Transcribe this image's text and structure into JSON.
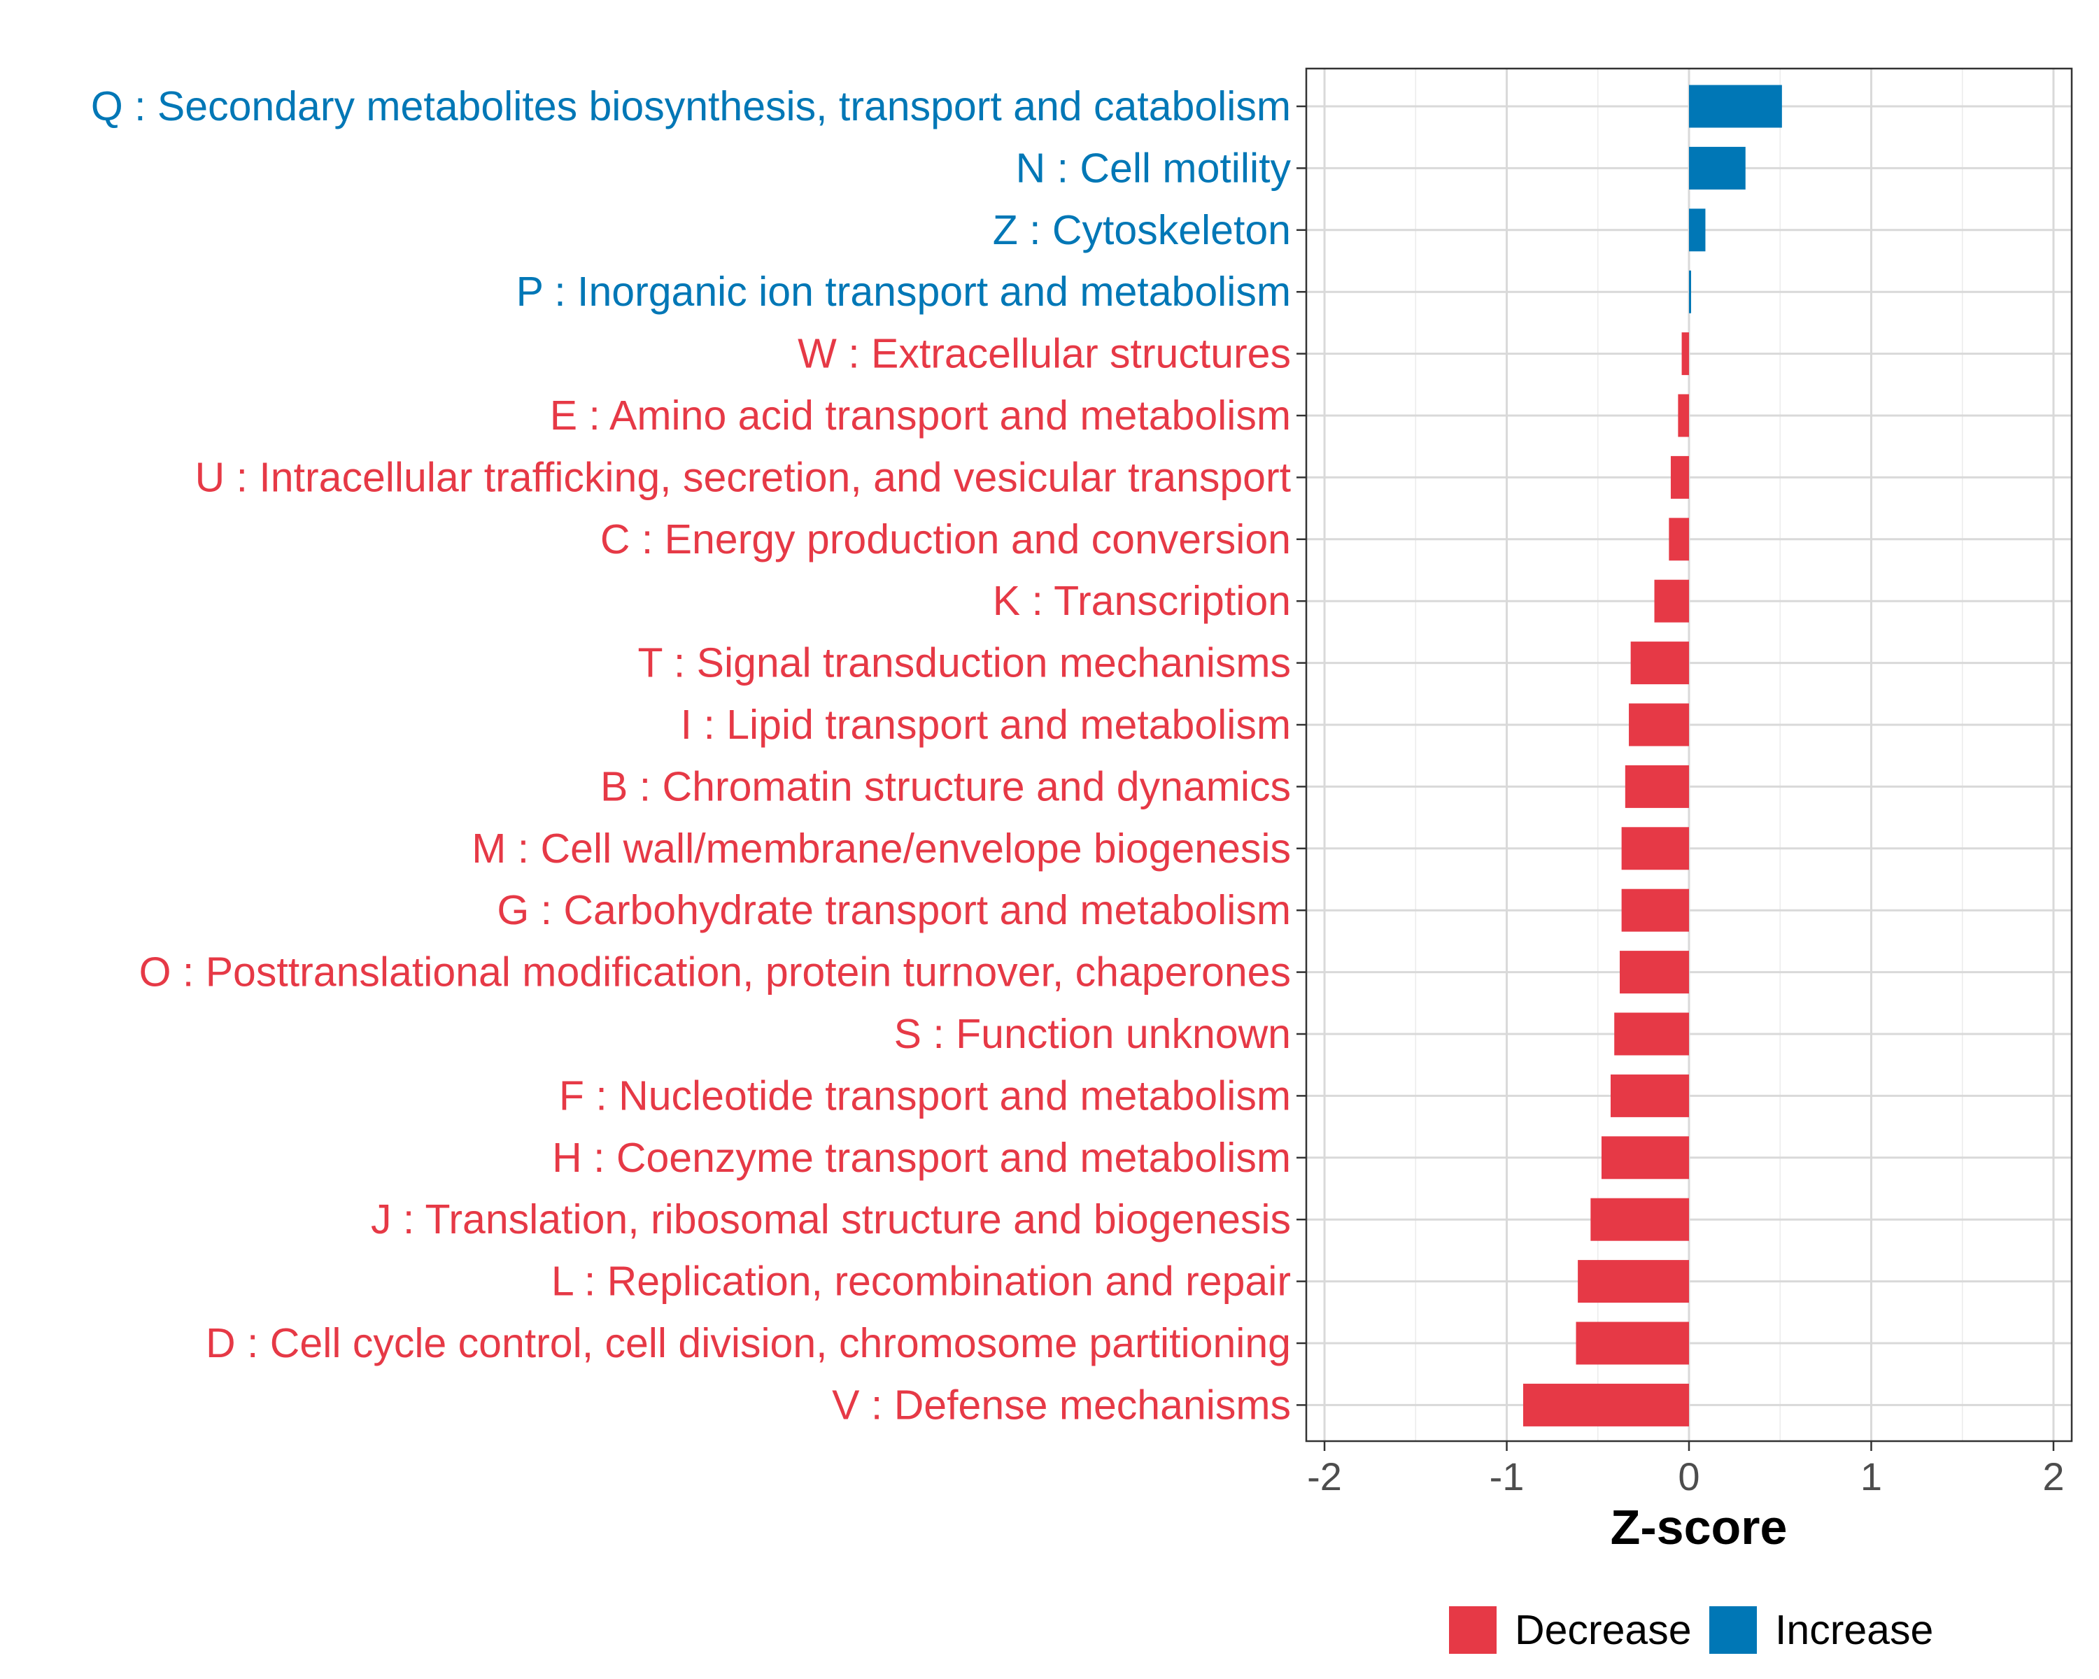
{
  "chart_data": {
    "type": "bar",
    "orientation": "horizontal",
    "categories": [
      "Q : Secondary metabolites biosynthesis, transport and catabolism",
      "N : Cell motility",
      "Z : Cytoskeleton",
      "P : Inorganic ion transport and metabolism",
      "W : Extracellular structures",
      "E : Amino acid transport and metabolism",
      "U : Intracellular trafficking, secretion, and vesicular transport",
      "C : Energy production and conversion",
      "K : Transcription",
      "T : Signal transduction mechanisms",
      "I : Lipid transport and metabolism",
      "B : Chromatin structure and dynamics",
      "M : Cell wall/membrane/envelope biogenesis",
      "G : Carbohydrate transport and metabolism",
      "O : Posttranslational modification, protein turnover, chaperones",
      "S : Function unknown",
      "F : Nucleotide transport and metabolism",
      "H : Coenzyme transport and metabolism",
      "J : Translation, ribosomal structure and biogenesis",
      "L : Replication, recombination and repair",
      "D : Cell cycle control, cell division, chromosome partitioning",
      "V : Defense mechanisms"
    ],
    "values": [
      0.51,
      0.31,
      0.09,
      0.01,
      -0.04,
      -0.06,
      -0.1,
      -0.11,
      -0.19,
      -0.32,
      -0.33,
      -0.35,
      -0.37,
      -0.37,
      -0.38,
      -0.41,
      -0.43,
      -0.48,
      -0.54,
      -0.61,
      -0.62,
      -0.91
    ],
    "xlabel": "Z-score",
    "ylabel": "",
    "title": "",
    "xlim": [
      -2.1,
      2.1
    ],
    "xticks": [
      -2,
      -1,
      0,
      1,
      2
    ],
    "xtick_labels": [
      "-2",
      "-1",
      "0",
      "1",
      "2"
    ],
    "grid": true,
    "legend": {
      "position": "bottom",
      "items": [
        {
          "label": "Decrease",
          "color": "#E63946"
        },
        {
          "label": "Increase",
          "color": "#0077B6"
        }
      ]
    },
    "colors": {
      "increase": "#0077B6",
      "decrease": "#E63946"
    }
  }
}
